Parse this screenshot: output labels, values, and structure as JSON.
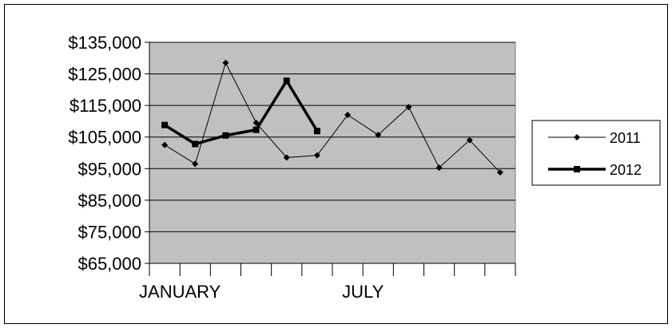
{
  "chart_data": {
    "type": "line",
    "title": "",
    "xlabel": "",
    "ylabel": "",
    "x_tick_labels": [
      {
        "label": "JANUARY",
        "index": 1
      },
      {
        "label": "JULY",
        "index": 7
      }
    ],
    "y_tick_labels": [
      "$135,000",
      "$125,000",
      "$115,000",
      "$105,000",
      "$95,000",
      "$85,000",
      "$75,000",
      "$65,000"
    ],
    "y_ticks": [
      135000,
      125000,
      115000,
      105000,
      95000,
      85000,
      75000,
      65000
    ],
    "ylim": [
      65000,
      135000
    ],
    "x_count": 12,
    "grid": "horizontal",
    "plot_background": "#c0c0c0",
    "legend_position": "right",
    "series": [
      {
        "name": "2011",
        "marker": "diamond",
        "line_weight": "thin",
        "color": "#000000",
        "values": [
          102500,
          96500,
          128500,
          109500,
          98500,
          99200,
          112000,
          105700,
          114500,
          95300,
          104000,
          93800
        ]
      },
      {
        "name": "2012",
        "marker": "square",
        "line_weight": "thick",
        "color": "#000000",
        "values": [
          108800,
          102800,
          105500,
          107300,
          122800,
          106900
        ]
      }
    ]
  }
}
